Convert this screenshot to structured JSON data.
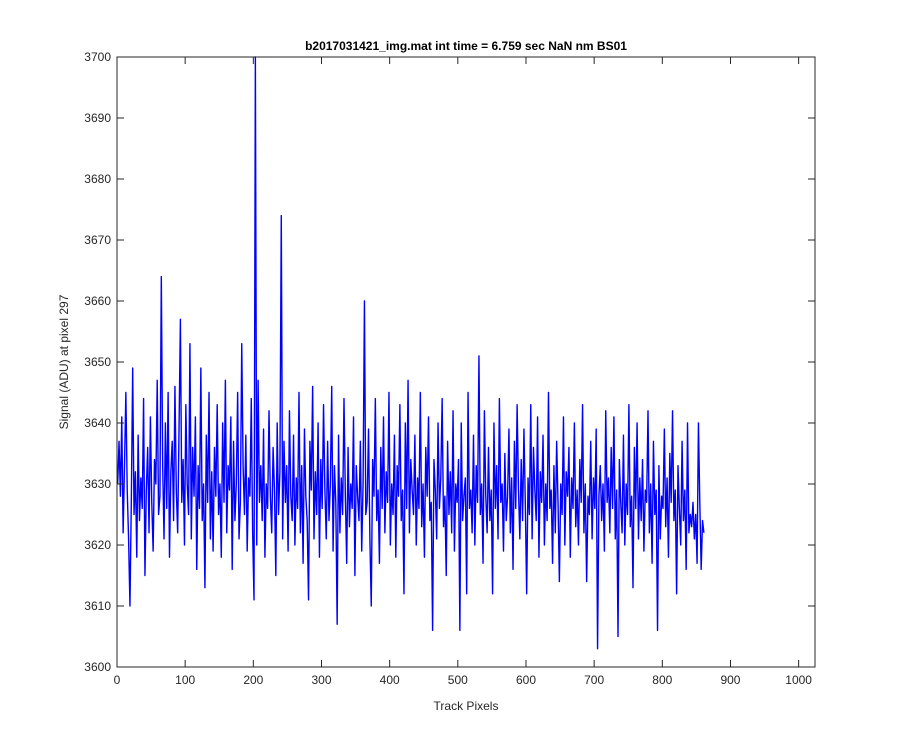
{
  "chart_data": {
    "type": "line",
    "title": "b2017031421_img.mat int time = 6.759 sec  NaN nm BS01",
    "xlabel": "Track Pixels",
    "ylabel": "Signal (ADU) at pixel 297",
    "xlim": [
      0,
      1024
    ],
    "ylim": [
      3600,
      3700
    ],
    "xticks": [
      "0",
      "100",
      "200",
      "300",
      "400",
      "500",
      "600",
      "700",
      "800",
      "900",
      "1000"
    ],
    "yticks": [
      "3600",
      "3610",
      "3620",
      "3630",
      "3640",
      "3650",
      "3660",
      "3670",
      "3680",
      "3690",
      "3700"
    ],
    "grid": false,
    "series": [
      {
        "color": "#0000ff",
        "x_start": 1,
        "x_step": 2,
        "y": [
          3630,
          3637,
          3628,
          3641,
          3622,
          3633,
          3645,
          3629,
          3621,
          3610,
          3627,
          3649,
          3625,
          3632,
          3618,
          3638,
          3624,
          3631,
          3626,
          3644,
          3615,
          3629,
          3636,
          3622,
          3641,
          3627,
          3619,
          3634,
          3630,
          3647,
          3625,
          3628,
          3664,
          3633,
          3621,
          3640,
          3626,
          3645,
          3618,
          3632,
          3637,
          3624,
          3646,
          3629,
          3622,
          3639,
          3657,
          3627,
          3634,
          3620,
          3643,
          3630,
          3625,
          3653,
          3621,
          3636,
          3628,
          3641,
          3616,
          3633,
          3626,
          3649,
          3624,
          3630,
          3613,
          3638,
          3627,
          3645,
          3621,
          3632,
          3619,
          3636,
          3628,
          3643,
          3625,
          3630,
          3618,
          3640,
          3627,
          3647,
          3622,
          3633,
          3629,
          3641,
          3616,
          3637,
          3624,
          3630,
          3645,
          3621,
          3627,
          3653,
          3633,
          3625,
          3638,
          3619,
          3631,
          3628,
          3644,
          3622,
          3611,
          3700,
          3620,
          3647,
          3627,
          3633,
          3624,
          3639,
          3618,
          3630,
          3626,
          3642,
          3628,
          3622,
          3636,
          3629,
          3615,
          3640,
          3625,
          3632,
          3674,
          3621,
          3637,
          3627,
          3633,
          3619,
          3642,
          3628,
          3624,
          3638,
          3620,
          3631,
          3626,
          3645,
          3622,
          3633,
          3617,
          3639,
          3628,
          3624,
          3611,
          3637,
          3629,
          3646,
          3621,
          3632,
          3625,
          3640,
          3618,
          3634,
          3626,
          3643,
          3629,
          3621,
          3637,
          3624,
          3630,
          3646,
          3619,
          3633,
          3627,
          3607,
          3638,
          3622,
          3631,
          3625,
          3644,
          3628,
          3617,
          3636,
          3623,
          3630,
          3626,
          3641,
          3615,
          3633,
          3628,
          3624,
          3637,
          3619,
          3630,
          3660,
          3625,
          3627,
          3639,
          3621,
          3610,
          3634,
          3628,
          3644,
          3624,
          3629,
          3617,
          3636,
          3626,
          3641,
          3622,
          3632,
          3627,
          3645,
          3620,
          3630,
          3625,
          3638,
          3618,
          3633,
          3628,
          3643,
          3624,
          3629,
          3612,
          3640,
          3626,
          3647,
          3622,
          3634,
          3629,
          3625,
          3638,
          3620,
          3631,
          3626,
          3645,
          3623,
          3630,
          3618,
          3636,
          3628,
          3641,
          3624,
          3627,
          3606,
          3634,
          3629,
          3621,
          3640,
          3626,
          3631,
          3644,
          3623,
          3628,
          3615,
          3637,
          3625,
          3632,
          3622,
          3642,
          3619,
          3630,
          3627,
          3634,
          3606,
          3640,
          3624,
          3628,
          3631,
          3612,
          3645,
          3626,
          3629,
          3622,
          3638,
          3620,
          3633,
          3627,
          3651,
          3625,
          3630,
          3617,
          3642,
          3628,
          3622,
          3636,
          3624,
          3629,
          3612,
          3640,
          3626,
          3633,
          3621,
          3644,
          3627,
          3630,
          3619,
          3635,
          3624,
          3628,
          3639,
          3622,
          3631,
          3616,
          3637,
          3626,
          3643,
          3629,
          3621,
          3634,
          3624,
          3639,
          3627,
          3612,
          3631,
          3625,
          3643,
          3621,
          3636,
          3629,
          3624,
          3641,
          3618,
          3632,
          3627,
          3638,
          3620,
          3630,
          3624,
          3645,
          3626,
          3629,
          3617,
          3633,
          3622,
          3637,
          3627,
          3614,
          3630,
          3625,
          3641,
          3620,
          3632,
          3628,
          3636,
          3618,
          3631,
          3626,
          3640,
          3623,
          3629,
          3620,
          3634,
          3627,
          3643,
          3622,
          3630,
          3614,
          3628,
          3625,
          3637,
          3621,
          3631,
          3626,
          3639,
          3603,
          3628,
          3633,
          3624,
          3630,
          3619,
          3642,
          3627,
          3631,
          3622,
          3636,
          3626,
          3641,
          3621,
          3629,
          3605,
          3634,
          3627,
          3622,
          3638,
          3620,
          3630,
          3625,
          3643,
          3623,
          3628,
          3613,
          3636,
          3626,
          3640,
          3621,
          3631,
          3624,
          3634,
          3619,
          3629,
          3627,
          3642,
          3622,
          3630,
          3617,
          3637,
          3625,
          3629,
          3606,
          3633,
          3621,
          3628,
          3626,
          3639,
          3623,
          3631,
          3618,
          3635,
          3627,
          3642,
          3624,
          3629,
          3612,
          3633,
          3626,
          3620,
          3637,
          3624,
          3629,
          3616,
          3640,
          3622,
          3625,
          3623,
          3627,
          3621,
          3625,
          3617,
          3640,
          3627,
          3616,
          3624,
          3622
        ]
      }
    ]
  }
}
